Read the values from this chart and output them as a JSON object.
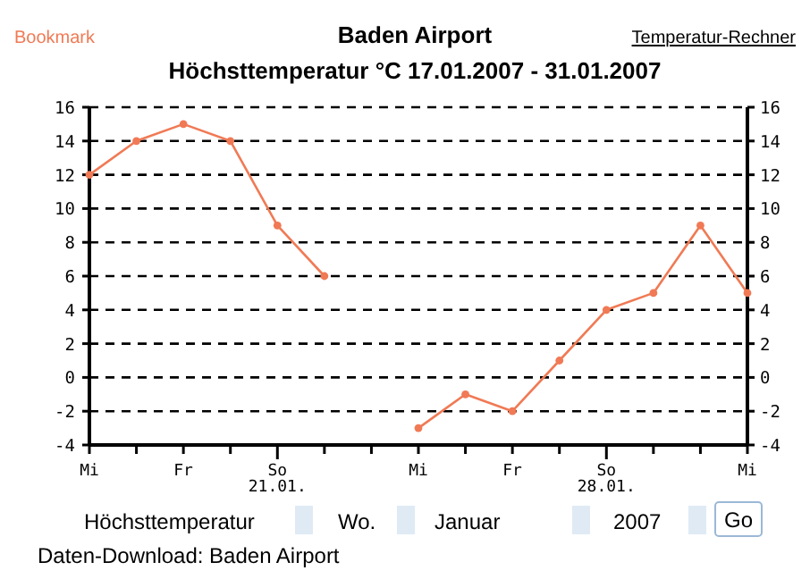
{
  "chart_data": {
    "type": "line",
    "title": "Baden Airport",
    "subtitle": "Höchsttemperatur °C 17.01.2007 - 31.01.2007",
    "categories": [
      "Mi",
      null,
      "Fr",
      null,
      "So\n21.01.",
      null,
      null,
      "Mi",
      null,
      "Fr",
      null,
      "So\n28.01.",
      null,
      null,
      "Mi"
    ],
    "series": [
      {
        "color": "#f07a55",
        "values": [
          12,
          14,
          15,
          14,
          9,
          6,
          null,
          -3,
          -1,
          -2,
          1,
          4,
          5,
          9,
          5
        ]
      }
    ],
    "ylim": [
      -4,
      16
    ],
    "yticks": [
      -4,
      -2,
      0,
      2,
      4,
      6,
      8,
      10,
      12,
      14,
      16
    ],
    "y2lim": [
      -4,
      16
    ],
    "y2ticks": [
      -4,
      -2,
      0,
      2,
      4,
      6,
      8,
      10,
      12,
      14,
      16
    ],
    "grid": "y",
    "marker": "circle",
    "line_style": "solid",
    "annotations": [
      "Bookmark",
      "Temperatur-Rechner",
      "Höchsttemperatur",
      "Wo.",
      "Januar",
      "2007",
      "Go",
      "Daten-Download: Baden Airport"
    ]
  }
}
